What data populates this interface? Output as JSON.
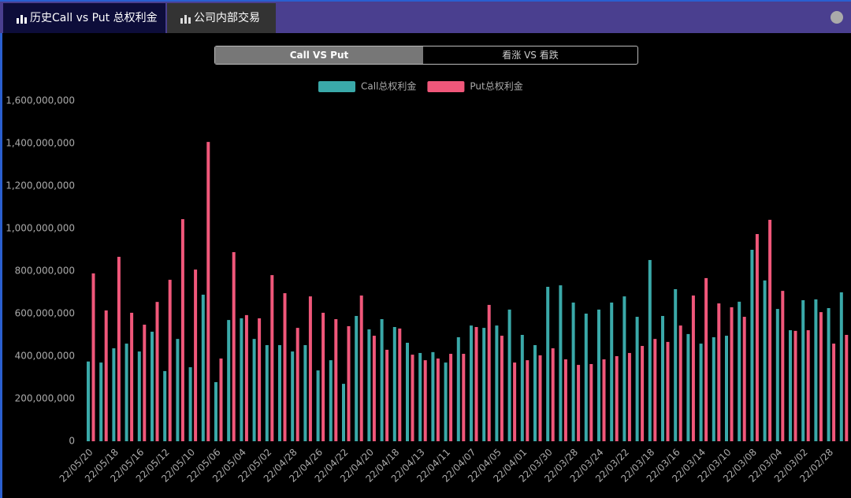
{
  "tabs": [
    "历史Call vs Put 总权利金",
    "公司内部交易"
  ],
  "toggle": [
    "Call VS Put",
    "看涨 VS 看跌"
  ],
  "chart_data": {
    "type": "bar",
    "categories": [
      "22/05/20",
      null,
      "22/05/18",
      null,
      "22/05/16",
      null,
      "22/05/12",
      null,
      "22/05/10",
      null,
      "22/05/06",
      null,
      "22/05/04",
      null,
      "22/05/02",
      null,
      "22/04/28",
      null,
      "22/04/26",
      null,
      "22/04/22",
      null,
      "22/04/20",
      null,
      "22/04/18",
      null,
      "22/04/13",
      null,
      "22/04/11",
      null,
      "22/04/07",
      null,
      "22/04/05",
      null,
      "22/04/01",
      null,
      "22/03/30",
      null,
      "22/03/28",
      null,
      "22/03/24",
      null,
      "22/03/22",
      null,
      "22/03/18",
      null,
      "22/03/16",
      null,
      "22/03/14",
      null,
      "22/03/10",
      null,
      "22/03/08",
      null,
      "22/03/04",
      null,
      "22/03/02",
      null,
      "22/02/28",
      null
    ],
    "series": [
      {
        "name": "Call总权利金",
        "color": "#3aa9a9",
        "values": [
          375000000,
          370000000,
          437000000,
          459000000,
          422000000,
          515000000,
          330000000,
          481000000,
          348000000,
          689000000,
          278000000,
          570000000,
          578000000,
          481000000,
          452000000,
          452000000,
          422000000,
          452000000,
          333000000,
          381000000,
          270000000,
          589000000,
          526000000,
          574000000,
          537000000,
          463000000,
          415000000,
          419000000,
          370000000,
          489000000,
          544000000,
          533000000,
          544000000,
          619000000,
          500000000,
          452000000,
          726000000,
          733000000,
          652000000,
          600000000,
          619000000,
          652000000,
          681000000,
          585000000,
          852000000,
          589000000,
          715000000,
          504000000,
          459000000,
          489000000,
          496000000,
          656000000,
          900000000,
          756000000,
          622000000,
          522000000,
          663000000,
          667000000,
          626000000,
          700000000
        ]
      },
      {
        "name": "Put总权利金",
        "color": "#f0577a",
        "values": [
          789000000,
          615000000,
          867000000,
          604000000,
          548000000,
          655000000,
          759000000,
          1044000000,
          807000000,
          1407000000,
          389000000,
          889000000,
          593000000,
          578000000,
          781000000,
          696000000,
          533000000,
          681000000,
          604000000,
          574000000,
          541000000,
          685000000,
          496000000,
          430000000,
          530000000,
          407000000,
          381000000,
          389000000,
          411000000,
          411000000,
          537000000,
          641000000,
          496000000,
          370000000,
          381000000,
          404000000,
          437000000,
          385000000,
          359000000,
          363000000,
          385000000,
          400000000,
          415000000,
          448000000,
          481000000,
          467000000,
          544000000,
          685000000,
          767000000,
          648000000,
          630000000,
          585000000,
          974000000,
          1041000000,
          707000000,
          519000000,
          522000000,
          607000000,
          459000000,
          500000000
        ]
      }
    ],
    "ylim": [
      0,
      1600000000
    ],
    "yticks": [
      0,
      {
        "value": 200000000,
        "label": "200,000,000"
      },
      {
        "value": 400000000,
        "label": "400,000,000"
      },
      {
        "value": 600000000,
        "label": "600,000,000"
      },
      {
        "value": 800000000,
        "label": "800,000,000"
      },
      {
        "value": 1000000000,
        "label": "1,000,000,000"
      },
      {
        "value": 1200000000,
        "label": "1,200,000,000"
      },
      {
        "value": 1400000000,
        "label": "1,400,000,000"
      },
      {
        "value": 1600000000,
        "label": "1,600,000,000"
      }
    ],
    "grid": false
  }
}
